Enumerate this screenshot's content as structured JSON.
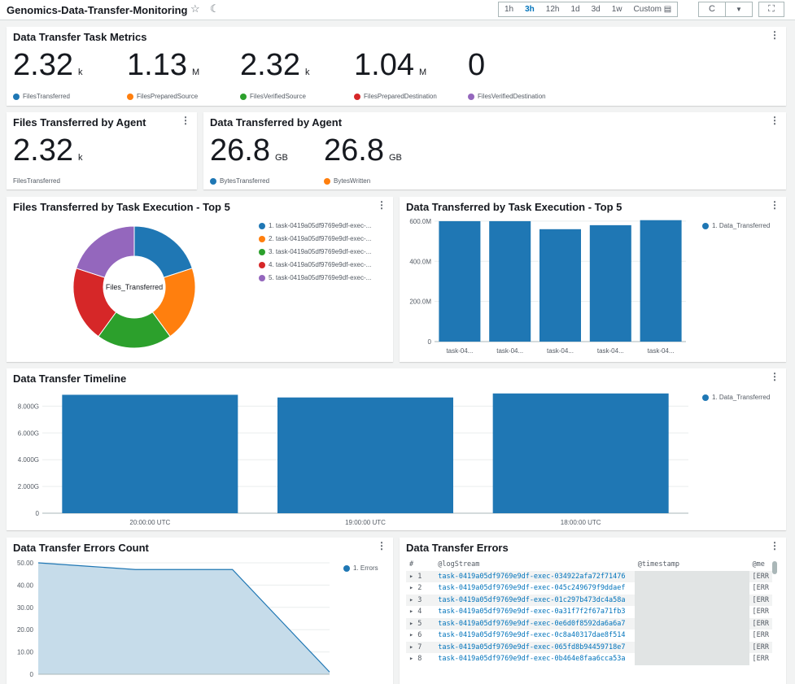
{
  "header": {
    "title": "Genomics-Data-Transfer-Monitoring",
    "ranges": [
      "1h",
      "3h",
      "12h",
      "1d",
      "3d",
      "1w"
    ],
    "selected_range": "3h",
    "custom_label": "Custom",
    "refresh_icon": "C",
    "dropdown_icon": "▼",
    "fullscreen_icon": "⛶"
  },
  "metrics": {
    "title": "Data Transfer Task Metrics",
    "items": [
      {
        "value": "2.32",
        "unit": "k",
        "label": "FilesTransferred",
        "color": "#1f77b4"
      },
      {
        "value": "1.13",
        "unit": "M",
        "label": "FilesPreparedSource",
        "color": "#ff7f0e"
      },
      {
        "value": "2.32",
        "unit": "k",
        "label": "FilesVerifiedSource",
        "color": "#2ca02c"
      },
      {
        "value": "1.04",
        "unit": "M",
        "label": "FilesPreparedDestination",
        "color": "#d62728"
      },
      {
        "value": "0",
        "unit": "",
        "label": "FilesVerifiedDestination",
        "color": "#9467bd"
      }
    ]
  },
  "agent_files": {
    "title": "Files Transferred by Agent",
    "value": "2.32",
    "unit": "k",
    "label": "FilesTransferred"
  },
  "agent_data": {
    "title": "Data Transferred by Agent",
    "items": [
      {
        "value": "26.8",
        "unit": "GB",
        "label": "BytesTransferred",
        "color": "#1f77b4"
      },
      {
        "value": "26.8",
        "unit": "GB",
        "label": "BytesWritten",
        "color": "#ff7f0e"
      }
    ]
  },
  "chart_data": [
    {
      "type": "pie",
      "title": "Files Transferred by Task Execution - Top 5",
      "center_label": "Files_Transferred",
      "legend": [
        "1. task-0419a05df9769e9df-exec-...",
        "2. task-0419a05df9769e9df-exec-...",
        "3. task-0419a05df9769e9df-exec-...",
        "4. task-0419a05df9769e9df-exec-...",
        "5. task-0419a05df9769e9df-exec-..."
      ],
      "values": [
        20,
        20,
        20,
        20,
        20
      ],
      "colors": [
        "#1f77b4",
        "#ff7f0e",
        "#2ca02c",
        "#d62728",
        "#9467bd"
      ]
    },
    {
      "type": "bar",
      "title": "Data Transferred by Task Execution - Top 5",
      "categories": [
        "task-04...",
        "task-04...",
        "task-04...",
        "task-04...",
        "task-04..."
      ],
      "values": [
        600,
        600,
        560,
        580,
        605
      ],
      "ylim": [
        0,
        620
      ],
      "yticks": [
        "0",
        "200.0M",
        "400.0M",
        "600.0M"
      ],
      "ytick_values": [
        0,
        200,
        400,
        600
      ],
      "legend": "1. Data_Transferred"
    },
    {
      "type": "bar",
      "title": "Data Transfer Timeline",
      "categories": [
        "20:00:00 UTC",
        "19:00:00 UTC",
        "18:00:00 UTC"
      ],
      "values": [
        8.85,
        8.65,
        8.95
      ],
      "ylim": [
        0,
        9.3
      ],
      "yticks": [
        "0",
        "2.000G",
        "4.000G",
        "6.000G",
        "8.000G"
      ],
      "ytick_values": [
        0,
        2,
        4,
        6,
        8
      ],
      "legend": "1. Data_Transferred"
    },
    {
      "type": "area",
      "title": "Data Transfer Errors Count",
      "x": [
        0,
        1,
        2,
        3,
        4,
        5,
        6
      ],
      "values": [
        50,
        48.5,
        47,
        47,
        47,
        24,
        1
      ],
      "ylim": [
        0,
        50
      ],
      "yticks": [
        "0",
        "10.00",
        "20.00",
        "30.00",
        "40.00",
        "50.00"
      ],
      "ytick_values": [
        0,
        10,
        20,
        30,
        40,
        50
      ],
      "legend": "1. Errors"
    }
  ],
  "errors_table": {
    "title": "Data Transfer Errors",
    "columns": [
      "#",
      "@logStream",
      "@timestamp",
      "@me"
    ],
    "rows": [
      {
        "n": "1",
        "stream": "task-0419a05df9769e9df-exec-034922afa72f71476",
        "msg": "[ERR"
      },
      {
        "n": "2",
        "stream": "task-0419a05df9769e9df-exec-045c249679f9ddaef",
        "msg": "[ERR"
      },
      {
        "n": "3",
        "stream": "task-0419a05df9769e9df-exec-01c297b473dc4a58a",
        "msg": "[ERR"
      },
      {
        "n": "4",
        "stream": "task-0419a05df9769e9df-exec-0a31f7f2f67a71fb3",
        "msg": "[ERR"
      },
      {
        "n": "5",
        "stream": "task-0419a05df9769e9df-exec-0e6d0f8592da6a6a7",
        "msg": "[ERR"
      },
      {
        "n": "6",
        "stream": "task-0419a05df9769e9df-exec-0c8a40317dae8f514",
        "msg": "[ERR"
      },
      {
        "n": "7",
        "stream": "task-0419a05df9769e9df-exec-065fd8b94459718e7",
        "msg": "[ERR"
      },
      {
        "n": "8",
        "stream": "task-0419a05df9769e9df-exec-0b464e8faa6cca53a",
        "msg": "[ERR"
      }
    ]
  }
}
